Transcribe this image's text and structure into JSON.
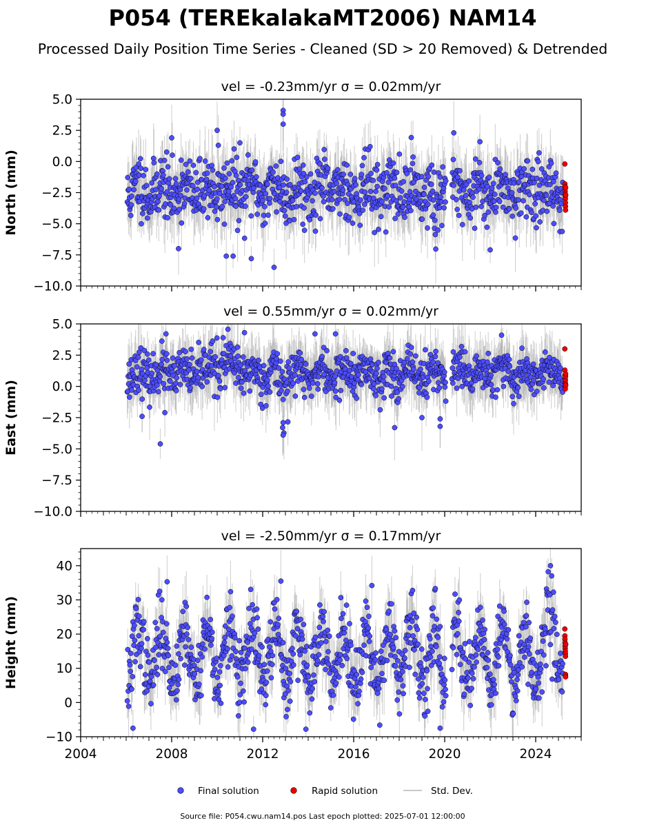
{
  "figure": {
    "title": "P054 (TEREkalakaMT2006) NAM14",
    "subtitle": "Processed Daily Position Time Series - Cleaned (SD > 20 Removed) & Detrended",
    "footer": "Source file: P054.cwu.nam14.pos  Last epoch plotted: 2025-07-01 12:00:00"
  },
  "legend": {
    "final": "Final solution",
    "rapid": "Rapid solution",
    "std": "Std. Dev."
  },
  "colors": {
    "final": "#4d4dff",
    "rapid": "#ee0000",
    "edge": "#000000",
    "std": "#c8c8c8"
  },
  "chart_data": [
    {
      "type": "scatter",
      "component": "north",
      "title": "vel = -0.23mm/yr   σ = 0.02mm/yr",
      "ylabel": "North (mm)",
      "xlim": [
        2004.0,
        2026.0
      ],
      "ylim": [
        -10.0,
        5.0
      ],
      "yticks": [
        -10.0,
        -7.5,
        -5.0,
        -2.5,
        0.0,
        2.5,
        5.0
      ],
      "ytick_labels": [
        "−10.0",
        "−7.5",
        "−5.0",
        "−2.5",
        "0.0",
        "2.5",
        "5.0"
      ],
      "xticks": [
        2004,
        2008,
        2012,
        2016,
        2020,
        2024
      ],
      "xtick_labels": [],
      "grid": false,
      "series_final": {
        "start": 2006.05,
        "end": 2025.22,
        "gap": [
          2020.05,
          2020.3
        ],
        "mean": -2.3,
        "amp": 0.6,
        "noise": 1.25,
        "sd": 1.3,
        "seed": 11,
        "features": [
          {
            "at": 2019.6,
            "width": 0.25,
            "shift": -2.2,
            "extra_noise": 1.2
          }
        ],
        "outliers": [
          {
            "x": 2008.0,
            "y": 1.9
          },
          {
            "x": 2010.0,
            "y": 2.5
          },
          {
            "x": 2010.05,
            "y": 1.3
          },
          {
            "x": 2011.0,
            "y": 1.5
          },
          {
            "x": 2012.9,
            "y": 4.1
          },
          {
            "x": 2012.9,
            "y": 3.8
          },
          {
            "x": 2012.9,
            "y": 3.0
          },
          {
            "x": 2020.4,
            "y": 2.3
          },
          {
            "x": 2010.4,
            "y": -7.6
          },
          {
            "x": 2010.7,
            "y": -7.6
          },
          {
            "x": 2011.5,
            "y": -7.8
          },
          {
            "x": 2012.5,
            "y": -8.5
          },
          {
            "x": 2022.0,
            "y": -7.1
          },
          {
            "x": 2008.3,
            "y": -7.0
          }
        ]
      },
      "series_rapid": {
        "x_start": 2025.28,
        "x_end": 2025.32,
        "y": [
          -0.2,
          -1.8,
          -2.0,
          -2.2,
          -2.4,
          -2.6,
          -2.8,
          -3.0,
          -3.3,
          -3.6,
          -3.9,
          -2.1,
          -2.7
        ]
      }
    },
    {
      "type": "scatter",
      "component": "east",
      "title": "vel = 0.55mm/yr   σ = 0.02mm/yr",
      "ylabel": "East (mm)",
      "xlim": [
        2004.0,
        2026.0
      ],
      "ylim": [
        -10.0,
        5.0
      ],
      "yticks": [
        -10.0,
        -7.5,
        -5.0,
        -2.5,
        0.0,
        2.5,
        5.0
      ],
      "ytick_labels": [
        "−10.0",
        "−7.5",
        "−5.0",
        "−2.5",
        "0.0",
        "2.5",
        "5.0"
      ],
      "xticks": [
        2004,
        2008,
        2012,
        2016,
        2020,
        2024
      ],
      "xtick_labels": [],
      "grid": false,
      "series_final": {
        "start": 2006.05,
        "end": 2025.22,
        "gap": [
          2020.05,
          2020.3
        ],
        "mean": 1.0,
        "amp": 0.5,
        "noise": 0.85,
        "sd": 1.2,
        "seed": 23,
        "features": [
          {
            "at": 2010.2,
            "width": 1.2,
            "shift": 0.9,
            "extra_noise": 0.2
          },
          {
            "at": 2012.9,
            "width": 0.3,
            "shift": -1.0,
            "extra_noise": 0.6
          }
        ],
        "outliers": [
          {
            "x": 2007.75,
            "y": 4.2
          },
          {
            "x": 2011.2,
            "y": 4.3
          },
          {
            "x": 2014.3,
            "y": 4.2
          },
          {
            "x": 2015.2,
            "y": 4.2
          },
          {
            "x": 2022.5,
            "y": 4.1
          },
          {
            "x": 2007.5,
            "y": -4.6
          },
          {
            "x": 2012.9,
            "y": -3.9
          },
          {
            "x": 2012.9,
            "y": -2.9
          },
          {
            "x": 2017.8,
            "y": -3.3
          },
          {
            "x": 2019.8,
            "y": -3.2
          },
          {
            "x": 2019.8,
            "y": -2.6
          },
          {
            "x": 2019.0,
            "y": -2.5
          },
          {
            "x": 2007.7,
            "y": -2.1
          },
          {
            "x": 2006.7,
            "y": -2.4
          }
        ]
      },
      "series_rapid": {
        "x_start": 2025.28,
        "x_end": 2025.32,
        "y": [
          3.0,
          1.3,
          0.9,
          0.6,
          0.3,
          0.0,
          -0.2,
          0.5,
          0.2,
          0.8,
          1.0,
          0.1
        ]
      }
    },
    {
      "type": "scatter",
      "component": "height",
      "title": "vel = -2.50mm/yr   σ = 0.17mm/yr",
      "ylabel": "Height (mm)",
      "xlim": [
        2004.0,
        2026.0
      ],
      "ylim": [
        -10.0,
        45.0
      ],
      "yticks": [
        -10,
        0,
        10,
        20,
        30,
        40
      ],
      "ytick_labels": [
        "−10",
        "0",
        "10",
        "20",
        "30",
        "40"
      ],
      "xticks": [
        2004,
        2008,
        2012,
        2016,
        2020,
        2024
      ],
      "xtick_labels": [
        "2004",
        "2008",
        "2012",
        "2016",
        "2020",
        "2024"
      ],
      "grid": false,
      "series_final": {
        "start": 2006.05,
        "end": 2025.22,
        "gap": [
          2020.05,
          2020.3
        ],
        "mean": 14.0,
        "amp": 8.0,
        "noise": 5.0,
        "sd": 4.5,
        "seed": 37,
        "features": [
          {
            "at": 2024.7,
            "width": 0.5,
            "shift": 6.0,
            "extra_noise": 2.0
          }
        ],
        "outliers": [
          {
            "x": 2024.65,
            "y": 40.0
          },
          {
            "x": 2024.7,
            "y": 37.0
          },
          {
            "x": 2006.3,
            "y": -7.5
          },
          {
            "x": 2013.9,
            "y": -7.8
          },
          {
            "x": 2019.8,
            "y": -7.5
          },
          {
            "x": 2011.6,
            "y": -7.8
          },
          {
            "x": 2007.8,
            "y": 35.3
          },
          {
            "x": 2012.8,
            "y": 35.5
          },
          {
            "x": 2016.8,
            "y": 34.2
          }
        ]
      },
      "series_rapid": {
        "x_start": 2025.28,
        "x_end": 2025.32,
        "y": [
          21.5,
          19.5,
          18.5,
          17.5,
          16.5,
          15.8,
          15.0,
          14.3,
          13.5,
          8.2,
          7.5,
          17.0
        ]
      }
    }
  ]
}
